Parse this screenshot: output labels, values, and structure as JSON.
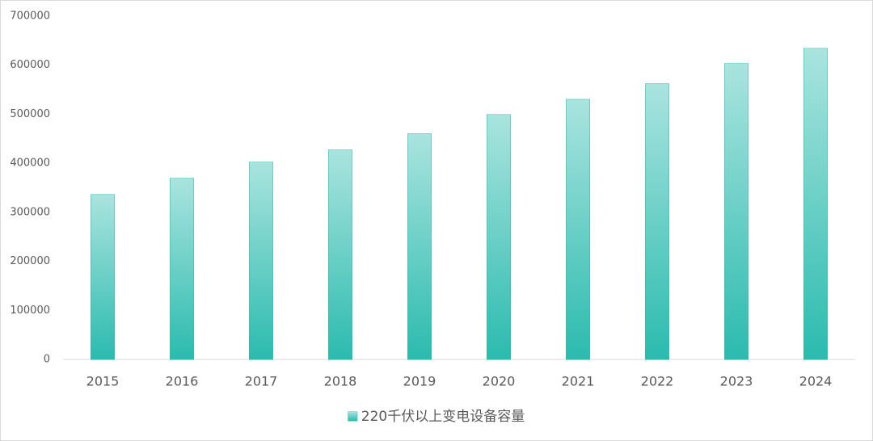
{
  "chart_data": {
    "type": "bar",
    "categories": [
      "2015",
      "2016",
      "2017",
      "2018",
      "2019",
      "2020",
      "2021",
      "2022",
      "2023",
      "2024"
    ],
    "series": [
      {
        "name": "220千伏以上变电设备容量",
        "color": "#2bbbae",
        "values": [
          336000,
          369000,
          402000,
          427000,
          460000,
          499000,
          530000,
          562000,
          603000,
          634000
        ]
      }
    ],
    "ylim": [
      0,
      700000
    ],
    "yticks": [
      0,
      100000,
      200000,
      300000,
      400000,
      500000,
      600000,
      700000
    ],
    "grid": false,
    "legend": "bottom"
  }
}
